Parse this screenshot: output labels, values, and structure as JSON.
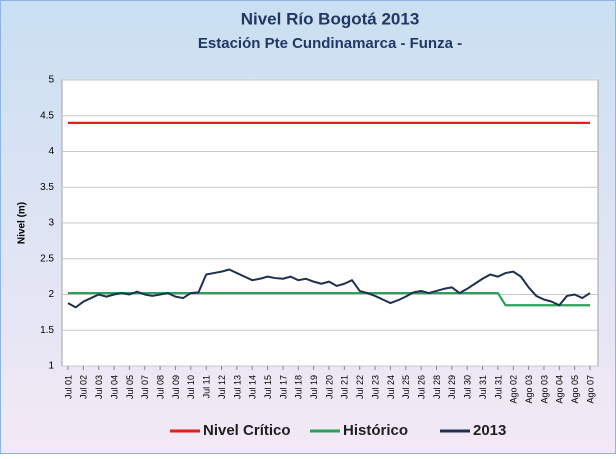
{
  "chart_data": {
    "type": "line",
    "title": "Nivel Río Bogotá 2013",
    "subtitle": "Estación Pte  Cundinamarca - Funza -",
    "y_label": "Nivel (m)",
    "categories": [
      "Jul 01",
      null,
      "Jul 02",
      null,
      "Jul 03",
      null,
      "Jul 04",
      null,
      "Jul 05",
      null,
      "Jul 07",
      null,
      "Jul 08",
      null,
      "Jul 09",
      null,
      "Jul 10",
      null,
      "Jul 11",
      null,
      "Jul 12",
      null,
      "Jul 13",
      null,
      "Jul 14",
      null,
      "Jul 15",
      null,
      "Jul 17",
      null,
      "Jul 18",
      null,
      "Jul 19",
      null,
      "Jul 20",
      null,
      "Jul 21",
      null,
      "Jul 22",
      null,
      "Jul 23",
      null,
      "Jul 24",
      null,
      "Jul 25",
      null,
      "Jul 26",
      null,
      "Jul 28",
      null,
      "Jul 29",
      null,
      "Jul 30",
      null,
      "Jul 31",
      null,
      "Jul 31",
      null,
      "Ago 02",
      null,
      "Ago 03",
      null,
      "Ago 03",
      null,
      "Ago 04",
      null,
      "Ago 05",
      null,
      "Ago 07"
    ],
    "series": [
      {
        "name": "Nivel Crítico",
        "color": "#e0201c",
        "values": [
          4.4,
          4.4,
          4.4,
          4.4,
          4.4,
          4.4,
          4.4,
          4.4,
          4.4,
          4.4,
          4.4,
          4.4,
          4.4,
          4.4,
          4.4,
          4.4,
          4.4,
          4.4,
          4.4,
          4.4,
          4.4,
          4.4,
          4.4,
          4.4,
          4.4,
          4.4,
          4.4,
          4.4,
          4.4,
          4.4,
          4.4,
          4.4,
          4.4,
          4.4,
          4.4,
          4.4,
          4.4,
          4.4,
          4.4,
          4.4,
          4.4,
          4.4,
          4.4,
          4.4,
          4.4,
          4.4,
          4.4,
          4.4,
          4.4,
          4.4,
          4.4,
          4.4,
          4.4,
          4.4,
          4.4,
          4.4,
          4.4,
          4.4,
          4.4,
          4.4,
          4.4,
          4.4,
          4.4,
          4.4,
          4.4,
          4.4,
          4.4,
          4.4,
          4.4
        ]
      },
      {
        "name": "Histórico",
        "color": "#2ca05a",
        "values": [
          2.02,
          2.02,
          2.02,
          2.02,
          2.02,
          2.02,
          2.02,
          2.02,
          2.02,
          2.02,
          2.02,
          2.02,
          2.02,
          2.02,
          2.02,
          2.02,
          2.02,
          2.02,
          2.02,
          2.02,
          2.02,
          2.02,
          2.02,
          2.02,
          2.02,
          2.02,
          2.02,
          2.02,
          2.02,
          2.02,
          2.02,
          2.02,
          2.02,
          2.02,
          2.02,
          2.02,
          2.02,
          2.02,
          2.02,
          2.02,
          2.02,
          2.02,
          2.02,
          2.02,
          2.02,
          2.02,
          2.02,
          2.02,
          2.02,
          2.02,
          2.02,
          2.02,
          2.02,
          2.02,
          2.02,
          2.02,
          2.02,
          1.85,
          1.85,
          1.85,
          1.85,
          1.85,
          1.85,
          1.85,
          1.85,
          1.85,
          1.85,
          1.85,
          1.85
        ]
      },
      {
        "name": "2013",
        "color": "#1f3050",
        "values": [
          1.88,
          1.82,
          1.9,
          1.95,
          2.0,
          1.97,
          2.0,
          2.02,
          2.0,
          2.04,
          2.0,
          1.98,
          2.0,
          2.02,
          1.97,
          1.95,
          2.02,
          2.03,
          2.28,
          2.3,
          2.32,
          2.35,
          2.3,
          2.25,
          2.2,
          2.22,
          2.25,
          2.23,
          2.22,
          2.25,
          2.2,
          2.22,
          2.18,
          2.15,
          2.18,
          2.12,
          2.15,
          2.2,
          2.05,
          2.02,
          1.98,
          1.93,
          1.88,
          1.92,
          1.97,
          2.03,
          2.05,
          2.02,
          2.05,
          2.08,
          2.1,
          2.02,
          2.08,
          2.15,
          2.22,
          2.28,
          2.25,
          2.3,
          2.32,
          2.25,
          2.1,
          1.98,
          1.93,
          1.9,
          1.85,
          1.98,
          2.0,
          1.95,
          2.02
        ]
      }
    ],
    "ylim": [
      1,
      5
    ],
    "yticks": [
      1,
      1.5,
      2,
      2.5,
      3,
      3.5,
      4,
      4.5,
      5
    ],
    "grid": true,
    "legend": "bottom"
  }
}
